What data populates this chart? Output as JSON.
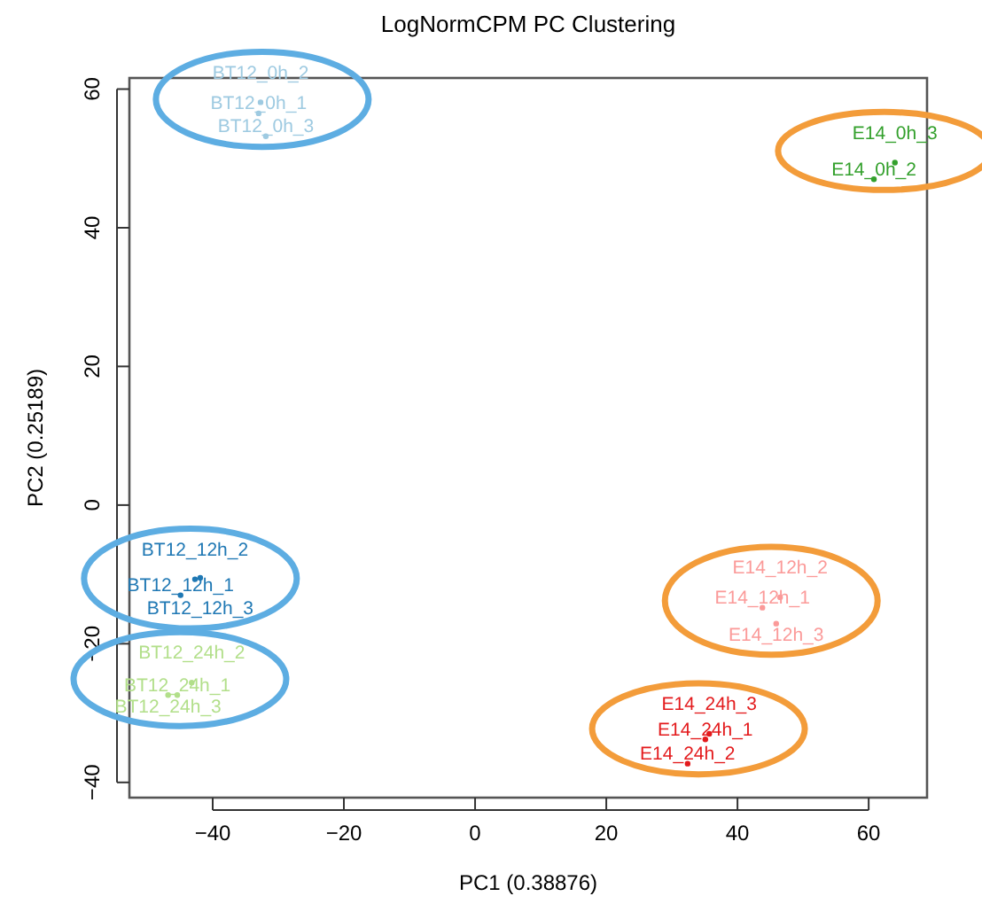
{
  "chart_data": {
    "type": "scatter",
    "title": "LogNormCPM PC Clustering",
    "xlabel": "PC1 (0.38876)",
    "ylabel": "PC2 (0.25189)",
    "marker": "circle",
    "grid": false,
    "xlim": [
      -52.7,
      68.9
    ],
    "ylim": [
      -42.2,
      61.6
    ],
    "xticks": [
      -40,
      -20,
      0,
      20,
      40,
      60
    ],
    "yticks": [
      -40,
      -20,
      0,
      20,
      40,
      60
    ],
    "series": [
      {
        "color": "#9ecae1",
        "x": [
          -33,
          -32.7,
          -31.9
        ],
        "values": [
          56.5,
          58.1,
          53.2
        ],
        "value_labels": [
          "BT12_0h_1",
          "BT12_0h_2",
          "BT12_0h_3"
        ]
      },
      {
        "color": "#1f78b4",
        "x": [
          -44.9,
          -42.7,
          -41.9
        ],
        "values": [
          -13,
          -10.7,
          -10.5
        ],
        "value_labels": [
          "BT12_12h_1",
          "BT12_12h_2",
          "BT12_12h_3"
        ]
      },
      {
        "color": "#b2df8a",
        "x": [
          -45.4,
          -43.2,
          -46.8
        ],
        "values": [
          -27.4,
          -25.6,
          -27.4
        ],
        "value_labels": [
          "BT12_24h_1",
          "BT12_24h_2",
          "BT12_24h_3"
        ]
      },
      {
        "color": "#33a02c",
        "x": [
          60.8,
          64
        ],
        "values": [
          47,
          49.4
        ],
        "value_labels": [
          "E14_0h_2",
          "E14_0h_3"
        ]
      },
      {
        "color": "#fb9a99",
        "x": [
          43.8,
          46.5,
          45.9
        ],
        "values": [
          -14.8,
          -13.3,
          -17.1
        ],
        "value_labels": [
          "E14_12h_1",
          "E14_12h_2",
          "E14_12h_3"
        ]
      },
      {
        "color": "#e31a1c",
        "x": [
          35.1,
          32.4,
          35.7
        ],
        "values": [
          -33.8,
          -37.3,
          -33
        ],
        "value_labels": [
          "E14_24h_1",
          "E14_24h_2",
          "E14_24h_3"
        ]
      }
    ]
  }
}
